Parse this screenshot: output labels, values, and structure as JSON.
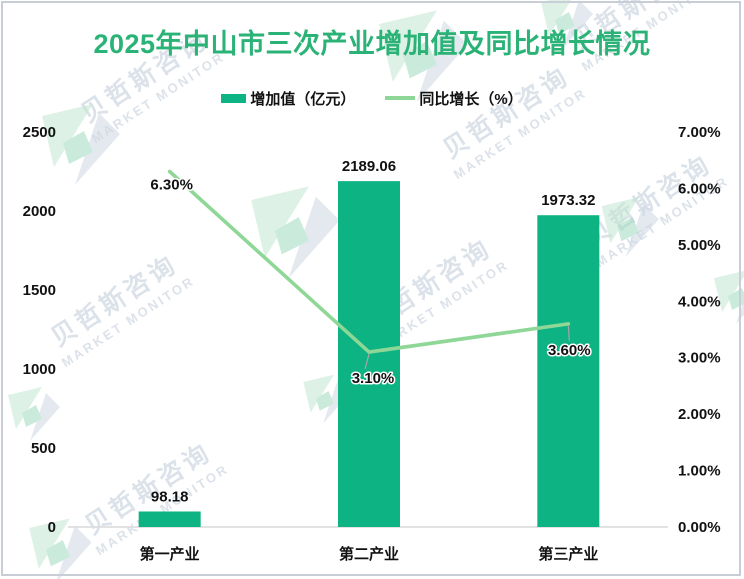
{
  "title": "2025年中山市三次产业增加值及同比增长情况",
  "legend": {
    "bar_label": "增加值（亿元）",
    "line_label": "同比增长（%）"
  },
  "watermark": {
    "cn": "贝哲斯咨询",
    "en": "MARKET MONITOR"
  },
  "colors": {
    "title": "#2bb377",
    "bar": "#0eb383",
    "line": "#8fd797",
    "axis_line": "#d9d9d9",
    "leader_line": "#a6a6a6",
    "text": "#111111"
  },
  "chart_data": {
    "type": "bar",
    "subtype": "bar+line combo",
    "categories": [
      "第一产业",
      "第二产业",
      "第三产业"
    ],
    "series": [
      {
        "name": "增加值（亿元）",
        "type": "bar",
        "axis": "left",
        "values": [
          98.18,
          2189.06,
          1973.32
        ],
        "labels": [
          "98.18",
          "2189.06",
          "1973.32"
        ]
      },
      {
        "name": "同比增长（%）",
        "type": "line",
        "axis": "right",
        "values": [
          6.3,
          3.1,
          3.6
        ],
        "labels": [
          "6.30%",
          "3.10%",
          "3.60%"
        ]
      }
    ],
    "left_axis": {
      "min": 0,
      "max": 2500,
      "step": 500,
      "ticks": [
        "0",
        "500",
        "1000",
        "1500",
        "2000",
        "2500"
      ]
    },
    "right_axis": {
      "min": 0,
      "max": 7,
      "step": 1,
      "ticks": [
        "0.00%",
        "1.00%",
        "2.00%",
        "3.00%",
        "4.00%",
        "5.00%",
        "6.00%",
        "7.00%"
      ]
    },
    "grid": "off",
    "legend_position": "top"
  }
}
